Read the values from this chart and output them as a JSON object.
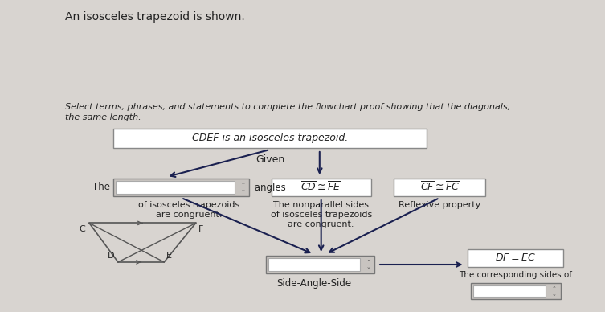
{
  "bg_color": "#d8d4d0",
  "title": "An isosceles trapezoid is shown.",
  "select_line1": "Select terms, phrases, and statements to complete the flowchart proof showing that the diagonals,",
  "select_line2": "the same length.",
  "given_box_text": "CDEF is an isosceles trapezoid.",
  "given_label": "Given",
  "box2_text_latex": "$\\overline{CD} \\cong \\overline{FE}$",
  "box3_text_latex": "$\\overline{CF} \\cong \\overline{FC}$",
  "box5_text_latex": "$\\overline{DF} = \\overline{EC}$",
  "box1_label_the": "The",
  "box1_label_angles": " angles",
  "box1_label_line2": "of isosceles trapezoids",
  "box1_label_line3": "are congruent.",
  "box2_label_line1": "The nonparallel sides",
  "box2_label_line2": "of isosceles trapezoids",
  "box2_label_line3": "are congruent.",
  "box3_label": "Reflexive property",
  "box4_label": "Side-Angle-Side",
  "box5_label_line1": "The corresponding sides of",
  "font_color": "#222222",
  "dark_arrow_color": "#1a2050",
  "box_fill_gray": "#c8c4c0",
  "box_fill_white": "#ffffff",
  "trap_line_color": "#555555",
  "trap_D": [
    0.205,
    0.84
  ],
  "trap_E": [
    0.285,
    0.84
  ],
  "trap_C": [
    0.155,
    0.715
  ],
  "trap_F": [
    0.34,
    0.715
  ]
}
